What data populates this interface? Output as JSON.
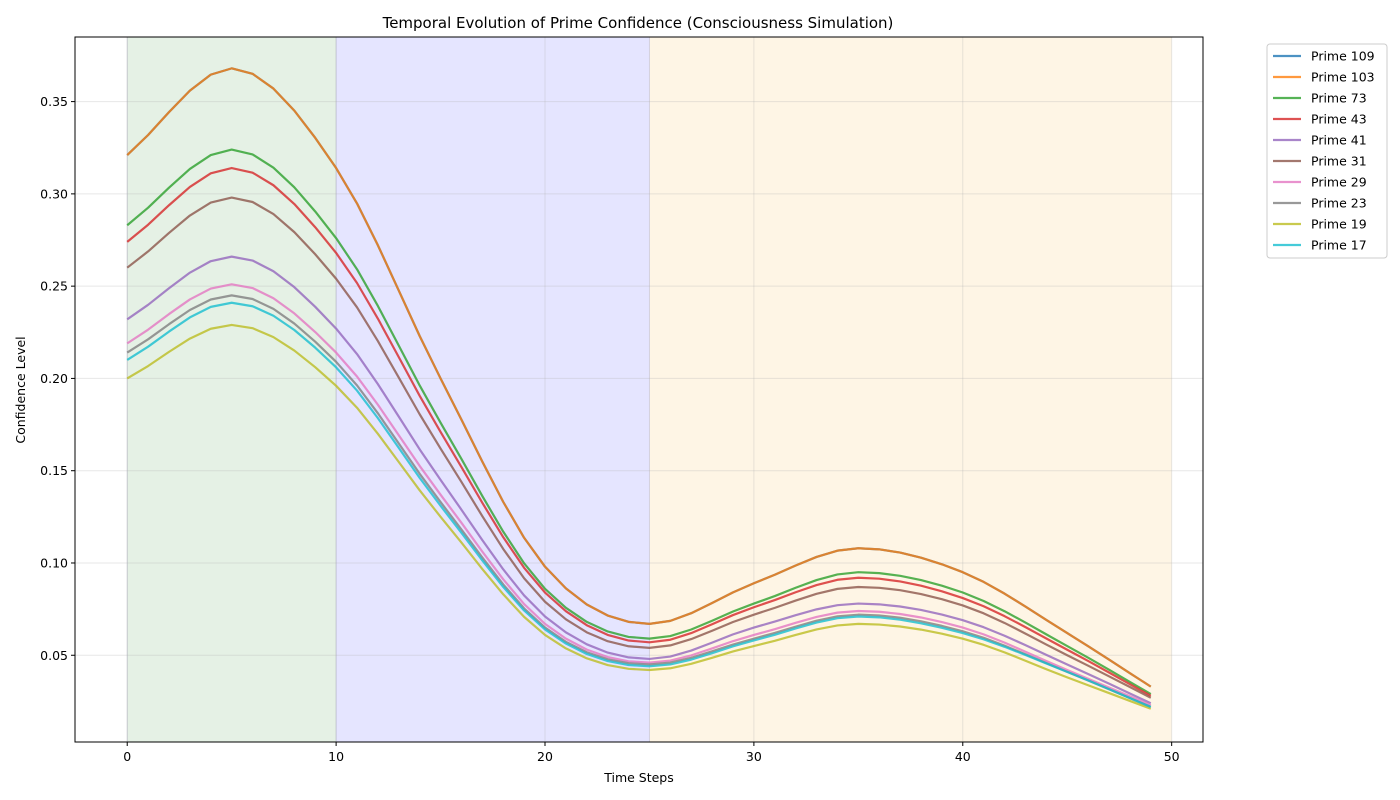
{
  "chart_data": {
    "type": "line",
    "title": "Temporal Evolution of Prime Confidence (Consciousness Simulation)",
    "xlabel": "Time Steps",
    "ylabel": "Confidence Level",
    "xlim": [
      -2.5,
      51.5
    ],
    "ylim": [
      0.003,
      0.385
    ],
    "x_ticks": [
      0,
      10,
      20,
      30,
      40,
      50
    ],
    "y_ticks": [
      0.05,
      0.1,
      0.15,
      0.2,
      0.25,
      0.3,
      0.35
    ],
    "x_tick_labels": [
      "0",
      "10",
      "20",
      "30",
      "40",
      "50"
    ],
    "y_tick_labels": [
      "0.05",
      "0.10",
      "0.15",
      "0.20",
      "0.25",
      "0.30",
      "0.35"
    ],
    "grid": true,
    "legend_position": "outside-top-right",
    "x_start": 0,
    "x_end": 49,
    "shaded_regions": [
      {
        "x0": 0,
        "x1": 10,
        "color": "#e5f1e5"
      },
      {
        "x0": 10,
        "x1": 25,
        "color": "#e5e5ff"
      },
      {
        "x0": 25,
        "x1": 50,
        "color": "#fef5e5"
      }
    ],
    "series": [
      {
        "name": "Prime 109",
        "color": "#1f77b4",
        "anchors": [
          [
            0,
            0.321
          ],
          [
            5,
            0.368
          ],
          [
            10,
            0.314
          ],
          [
            15,
            0.2
          ],
          [
            20,
            0.098
          ],
          [
            25,
            0.067
          ],
          [
            30,
            0.089
          ],
          [
            35,
            0.108
          ],
          [
            40,
            0.095
          ],
          [
            45,
            0.062
          ],
          [
            49,
            0.033
          ]
        ]
      },
      {
        "name": "Prime 103",
        "color": "#ff7f0e",
        "anchors": [
          [
            0,
            0.321
          ],
          [
            5,
            0.368
          ],
          [
            10,
            0.314
          ],
          [
            15,
            0.2
          ],
          [
            20,
            0.098
          ],
          [
            25,
            0.067
          ],
          [
            30,
            0.089
          ],
          [
            35,
            0.108
          ],
          [
            40,
            0.095
          ],
          [
            45,
            0.062
          ],
          [
            49,
            0.033
          ]
        ]
      },
      {
        "name": "Prime 73",
        "color": "#2ca02c",
        "anchors": [
          [
            0,
            0.283
          ],
          [
            5,
            0.324
          ],
          [
            10,
            0.276
          ],
          [
            15,
            0.176
          ],
          [
            20,
            0.086
          ],
          [
            25,
            0.059
          ],
          [
            30,
            0.078
          ],
          [
            35,
            0.095
          ],
          [
            40,
            0.084
          ],
          [
            45,
            0.055
          ],
          [
            49,
            0.029
          ]
        ]
      },
      {
        "name": "Prime 43",
        "color": "#d62728",
        "anchors": [
          [
            0,
            0.274
          ],
          [
            5,
            0.314
          ],
          [
            10,
            0.268
          ],
          [
            15,
            0.171
          ],
          [
            20,
            0.084
          ],
          [
            25,
            0.057
          ],
          [
            30,
            0.076
          ],
          [
            35,
            0.092
          ],
          [
            40,
            0.081
          ],
          [
            45,
            0.053
          ],
          [
            49,
            0.028
          ]
        ]
      },
      {
        "name": "Prime 41",
        "color": "#9467bd",
        "anchors": [
          [
            0,
            0.232
          ],
          [
            5,
            0.266
          ],
          [
            10,
            0.227
          ],
          [
            15,
            0.145
          ],
          [
            20,
            0.071
          ],
          [
            25,
            0.048
          ],
          [
            30,
            0.065
          ],
          [
            35,
            0.078
          ],
          [
            40,
            0.069
          ],
          [
            45,
            0.045
          ],
          [
            49,
            0.024
          ]
        ]
      },
      {
        "name": "Prime 31",
        "color": "#8c564b",
        "anchors": [
          [
            0,
            0.26
          ],
          [
            5,
            0.298
          ],
          [
            10,
            0.254
          ],
          [
            15,
            0.162
          ],
          [
            20,
            0.079
          ],
          [
            25,
            0.054
          ],
          [
            30,
            0.072
          ],
          [
            35,
            0.087
          ],
          [
            40,
            0.077
          ],
          [
            45,
            0.05
          ],
          [
            49,
            0.027
          ]
        ]
      },
      {
        "name": "Prime 29",
        "color": "#e377c2",
        "anchors": [
          [
            0,
            0.219
          ],
          [
            5,
            0.251
          ],
          [
            10,
            0.214
          ],
          [
            15,
            0.137
          ],
          [
            20,
            0.067
          ],
          [
            25,
            0.046
          ],
          [
            30,
            0.061
          ],
          [
            35,
            0.074
          ],
          [
            40,
            0.065
          ],
          [
            45,
            0.042
          ],
          [
            49,
            0.023
          ]
        ]
      },
      {
        "name": "Prime 23",
        "color": "#7f7f7f",
        "anchors": [
          [
            0,
            0.214
          ],
          [
            5,
            0.245
          ],
          [
            10,
            0.209
          ],
          [
            15,
            0.133
          ],
          [
            20,
            0.065
          ],
          [
            25,
            0.045
          ],
          [
            30,
            0.059
          ],
          [
            35,
            0.072
          ],
          [
            40,
            0.063
          ],
          [
            45,
            0.041
          ],
          [
            49,
            0.022
          ]
        ]
      },
      {
        "name": "Prime 19",
        "color": "#bcbd22",
        "anchors": [
          [
            0,
            0.2
          ],
          [
            5,
            0.229
          ],
          [
            10,
            0.196
          ],
          [
            15,
            0.125
          ],
          [
            20,
            0.061
          ],
          [
            25,
            0.042
          ],
          [
            30,
            0.055
          ],
          [
            35,
            0.067
          ],
          [
            40,
            0.059
          ],
          [
            45,
            0.038
          ],
          [
            49,
            0.021
          ]
        ]
      },
      {
        "name": "Prime 17",
        "color": "#17becf",
        "anchors": [
          [
            0,
            0.21
          ],
          [
            5,
            0.241
          ],
          [
            10,
            0.206
          ],
          [
            15,
            0.131
          ],
          [
            20,
            0.064
          ],
          [
            25,
            0.044
          ],
          [
            30,
            0.058
          ],
          [
            35,
            0.071
          ],
          [
            40,
            0.062
          ],
          [
            45,
            0.041
          ],
          [
            49,
            0.022
          ]
        ]
      }
    ]
  }
}
